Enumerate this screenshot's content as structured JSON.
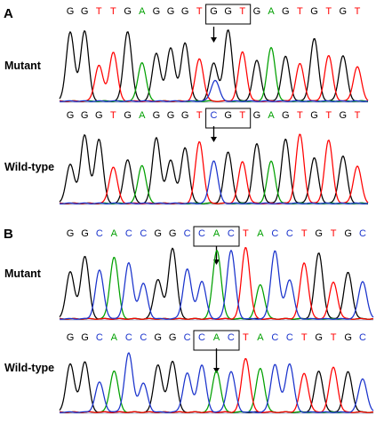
{
  "panels": [
    {
      "letter": "A",
      "tracks": [
        {
          "label": "Mutant",
          "bases": [
            "G",
            "G",
            "T",
            "T",
            "G",
            "A",
            "G",
            "G",
            "G",
            "T",
            "G",
            "G",
            "T",
            "G",
            "A",
            "G",
            "T",
            "G",
            "T",
            "G",
            "T"
          ],
          "codon_start": 10
        },
        {
          "label": "Wild-type",
          "bases": [
            "G",
            "G",
            "G",
            "T",
            "G",
            "A",
            "G",
            "G",
            "G",
            "T",
            "C",
            "G",
            "T",
            "G",
            "A",
            "G",
            "T",
            "G",
            "T",
            "G",
            "T"
          ],
          "codon_start": 10
        }
      ]
    },
    {
      "letter": "B",
      "tracks": [
        {
          "label": "Mutant",
          "bases": [
            "G",
            "G",
            "C",
            "A",
            "C",
            "C",
            "G",
            "G",
            "C",
            "C",
            "A",
            "C",
            "T",
            "A",
            "C",
            "C",
            "T",
            "G",
            "T",
            "G",
            "C"
          ],
          "codon_start": 9
        },
        {
          "label": "Wild-type",
          "bases": [
            "G",
            "G",
            "C",
            "A",
            "C",
            "C",
            "G",
            "G",
            "C",
            "C",
            "A",
            "C",
            "T",
            "A",
            "C",
            "C",
            "T",
            "G",
            "T",
            "G",
            "C"
          ],
          "codon_start": 9
        }
      ]
    }
  ],
  "base_colors": {
    "G": "#000000",
    "A": "#00a000",
    "T": "#ff0000",
    "C": "#1a33cc"
  }
}
